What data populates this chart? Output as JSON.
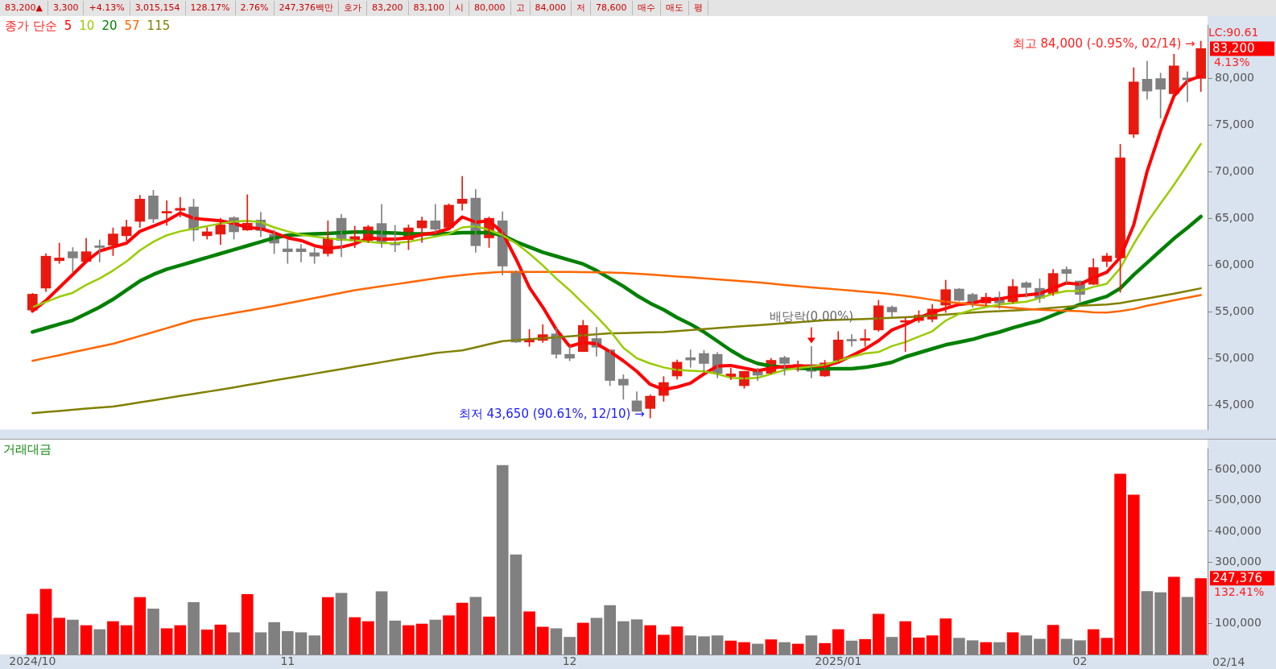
{
  "chart_data": [
    {
      "type": "other",
      "annotations": [
        "83,200▲",
        "3,300",
        "+4.13%",
        "3,015,154",
        "128.17%",
        "2.76%",
        "247,376백만",
        "호가",
        "83,200",
        "83,100",
        "시",
        "80,000",
        "고",
        "84,000",
        "저",
        "78,600",
        "매수",
        "매도",
        "평"
      ]
    },
    {
      "type": "candlestick",
      "legend": "top left",
      "legend_title": "종가 단순",
      "tick_labels": "y",
      "categories": [
        "2024/10",
        null,
        null,
        null,
        null,
        null,
        null,
        null,
        null,
        null,
        null,
        null,
        null,
        null,
        null,
        null,
        null,
        null,
        null,
        "11",
        null,
        null,
        null,
        null,
        null,
        null,
        null,
        null,
        null,
        null,
        null,
        null,
        null,
        null,
        null,
        null,
        null,
        null,
        null,
        null,
        "12",
        null,
        null,
        null,
        null,
        null,
        null,
        null,
        null,
        null,
        null,
        null,
        null,
        null,
        null,
        null,
        null,
        null,
        null,
        null,
        "2025/01",
        null,
        null,
        null,
        null,
        null,
        null,
        null,
        null,
        null,
        null,
        null,
        null,
        null,
        null,
        null,
        null,
        null,
        "02",
        null,
        null,
        null,
        null,
        null,
        null,
        null,
        null,
        null
      ],
      "ohlc": [
        [
          55200,
          57000,
          55000,
          56900
        ],
        [
          57550,
          61250,
          57190,
          60970
        ],
        [
          60490,
          62370,
          60190,
          60780
        ],
        [
          61450,
          61900,
          59290,
          60780
        ],
        [
          60410,
          62880,
          60270,
          61450
        ],
        [
          62090,
          62710,
          60350,
          61900
        ],
        [
          62150,
          64000,
          61030,
          63350
        ],
        [
          63160,
          64840,
          62650,
          64110
        ],
        [
          64700,
          67500,
          64050,
          67080
        ],
        [
          67420,
          68030,
          64560,
          64950
        ],
        [
          65590,
          66910,
          64280,
          65740
        ],
        [
          65880,
          67280,
          65170,
          66100
        ],
        [
          66240,
          67080,
          62600,
          63770
        ],
        [
          63160,
          64050,
          62790,
          63580
        ],
        [
          63330,
          65030,
          62230,
          64330
        ],
        [
          65090,
          65230,
          62790,
          63580
        ],
        [
          63770,
          67560,
          63720,
          64500
        ],
        [
          64840,
          65680,
          63070,
          63720
        ],
        [
          63300,
          63770,
          61250,
          62370
        ],
        [
          61760,
          62790,
          60190,
          61450
        ],
        [
          61760,
          62230,
          60350,
          61450
        ],
        [
          61340,
          61870,
          60190,
          60970
        ],
        [
          61250,
          64760,
          60970,
          62880
        ],
        [
          65030,
          65450,
          60920,
          62650
        ],
        [
          62600,
          64190,
          61870,
          63070
        ],
        [
          62650,
          64280,
          62430,
          64110
        ],
        [
          64470,
          66520,
          61900,
          62460
        ],
        [
          62370,
          64280,
          61450,
          62180
        ],
        [
          62740,
          64330,
          61670,
          64000
        ],
        [
          64000,
          65170,
          62430,
          64760
        ],
        [
          64760,
          66520,
          63490,
          63860
        ],
        [
          64050,
          66580,
          63770,
          66440
        ],
        [
          66630,
          69520,
          65880,
          67080
        ],
        [
          67190,
          68120,
          61390,
          62090
        ],
        [
          62930,
          65170,
          61900,
          65030
        ],
        [
          64760,
          65730,
          58950,
          59910
        ],
        [
          59290,
          59400,
          51700,
          51780
        ],
        [
          51780,
          53130,
          51310,
          52000
        ],
        [
          51950,
          53630,
          51730,
          52570
        ],
        [
          52650,
          53270,
          50040,
          50460
        ],
        [
          50460,
          51310,
          49760,
          50040
        ],
        [
          50750,
          54110,
          50750,
          53550
        ],
        [
          52150,
          53350,
          50270,
          51220
        ],
        [
          50940,
          50940,
          47100,
          47660
        ],
        [
          47800,
          48280,
          45640,
          47160
        ],
        [
          45480,
          46460,
          44360,
          44360
        ],
        [
          44660,
          46120,
          43650,
          45980
        ],
        [
          46060,
          48080,
          45420,
          47440
        ],
        [
          48140,
          49850,
          47800,
          49620
        ],
        [
          50100,
          50940,
          49060,
          49850
        ],
        [
          50550,
          50890,
          48640,
          49480
        ],
        [
          50460,
          50660,
          47940,
          48420
        ],
        [
          48080,
          48980,
          47750,
          48360
        ],
        [
          47100,
          48640,
          46820,
          48640
        ],
        [
          48640,
          48980,
          47660,
          48220
        ],
        [
          48420,
          50040,
          48360,
          49820
        ],
        [
          50100,
          50270,
          48220,
          49480
        ],
        [
          49200,
          49760,
          48640,
          49340
        ],
        [
          49340,
          51300,
          47940,
          48640
        ],
        [
          48140,
          49820,
          48080,
          49540
        ],
        [
          49760,
          52900,
          49760,
          52000
        ],
        [
          52000,
          52570,
          51310,
          51890
        ],
        [
          51950,
          53130,
          51310,
          52150
        ],
        [
          53070,
          56240,
          52920,
          55660
        ],
        [
          55510,
          55660,
          54360,
          55000
        ],
        [
          53900,
          54360,
          50760,
          54020
        ],
        [
          54080,
          55140,
          53870,
          54650
        ],
        [
          54220,
          55800,
          53930,
          55310
        ],
        [
          55720,
          58400,
          54940,
          57390
        ],
        [
          57450,
          57530,
          56150,
          56240
        ],
        [
          56870,
          57010,
          55510,
          56090
        ],
        [
          55950,
          57010,
          55660,
          56580
        ],
        [
          56580,
          57160,
          55370,
          55950
        ],
        [
          56090,
          58480,
          55950,
          57730
        ],
        [
          58110,
          58250,
          56580,
          57620
        ],
        [
          57530,
          58540,
          56000,
          56470
        ],
        [
          56960,
          59550,
          56750,
          59120
        ],
        [
          59550,
          59840,
          58110,
          59120
        ],
        [
          58310,
          58310,
          56090,
          56870
        ],
        [
          57960,
          60700,
          57910,
          59750
        ],
        [
          60410,
          61280,
          59840,
          60990
        ],
        [
          60790,
          72950,
          57100,
          71500
        ],
        [
          74040,
          81150,
          73670,
          79630
        ],
        [
          79920,
          81880,
          77790,
          78650
        ],
        [
          80000,
          80580,
          75770,
          78850
        ],
        [
          78360,
          82600,
          78360,
          81360
        ],
        [
          80060,
          80720,
          77500,
          79860
        ],
        [
          80000,
          84000,
          78600,
          83200
        ]
      ],
      "colors": [
        "#e8190f",
        "#e8190f",
        "#e8190f",
        "#808080",
        "#e8190f",
        "#808080",
        "#e8190f",
        "#e8190f",
        "#e8190f",
        "#808080",
        "#e8190f",
        "#e8190f",
        "#808080",
        "#e8190f",
        "#e8190f",
        "#808080",
        "#e8190f",
        "#808080",
        "#808080",
        "#808080",
        "#808080",
        "#808080",
        "#e8190f",
        "#808080",
        "#e8190f",
        "#e8190f",
        "#808080",
        "#808080",
        "#e8190f",
        "#e8190f",
        "#808080",
        "#e8190f",
        "#e8190f",
        "#808080",
        "#e8190f",
        "#808080",
        "#808080",
        "#e8190f",
        "#e8190f",
        "#808080",
        "#808080",
        "#e8190f",
        "#808080",
        "#808080",
        "#808080",
        "#808080",
        "#e8190f",
        "#e8190f",
        "#e8190f",
        "#808080",
        "#808080",
        "#808080",
        "#e8190f",
        "#e8190f",
        "#808080",
        "#e8190f",
        "#808080",
        "#e8190f",
        "#808080",
        "#e8190f",
        "#e8190f",
        "#808080",
        "#e8190f",
        "#e8190f",
        "#808080",
        "#e8190f",
        "#e8190f",
        "#e8190f",
        "#e8190f",
        "#808080",
        "#808080",
        "#e8190f",
        "#808080",
        "#e8190f",
        "#808080",
        "#808080",
        "#e8190f",
        "#808080",
        "#808080",
        "#e8190f",
        "#e8190f",
        "#e8190f",
        "#e8190f",
        "#808080",
        "#808080",
        "#e8190f",
        "#808080",
        "#e8190f"
      ],
      "series": [
        {
          "name": "5",
          "type": "line",
          "color": "#ff0000",
          "values": [
            55090,
            56210,
            57610,
            59010,
            60410,
            61530,
            61950,
            62370,
            63630,
            64190,
            64760,
            65590,
            65030,
            64890,
            64760,
            64470,
            64050,
            63910,
            63490,
            62930,
            62650,
            62090,
            61810,
            61950,
            62290,
            62930,
            62790,
            62790,
            62930,
            63270,
            63490,
            63910,
            65170,
            64610,
            64760,
            63490,
            60690,
            57610,
            55510,
            53130,
            51310,
            51730,
            51590,
            50750,
            49760,
            48640,
            47240,
            46680,
            46960,
            47380,
            48360,
            49200,
            49260,
            48980,
            48700,
            48980,
            49150,
            49200,
            49200,
            49200,
            49620,
            50320,
            51020,
            51910,
            53070,
            53640,
            54360,
            54940,
            55370,
            55800,
            55950,
            56290,
            56380,
            56670,
            56810,
            56960,
            57530,
            58110,
            57960,
            58680,
            59260,
            60840,
            64300,
            70060,
            74390,
            78130,
            79720,
            80290
          ]
        },
        {
          "name": "10",
          "type": "line",
          "color": "#99cc00",
          "values": [
            55510,
            56070,
            56630,
            57050,
            57890,
            58590,
            59430,
            60410,
            61590,
            62510,
            63210,
            63630,
            63910,
            64190,
            64470,
            64670,
            64760,
            64610,
            64050,
            63630,
            63270,
            63070,
            62880,
            62760,
            62650,
            62510,
            62370,
            62370,
            62510,
            62790,
            63070,
            63350,
            64050,
            64190,
            63770,
            63210,
            62370,
            61250,
            59990,
            58590,
            57330,
            55930,
            54530,
            52990,
            51160,
            50040,
            49480,
            49060,
            48780,
            48700,
            48640,
            48360,
            47940,
            47860,
            47940,
            48360,
            48780,
            48980,
            49150,
            49340,
            49760,
            50180,
            50550,
            50700,
            51340,
            51770,
            52350,
            52920,
            54070,
            54790,
            55230,
            55510,
            55800,
            55950,
            56090,
            56470,
            56960,
            57240,
            57240,
            57680,
            58020,
            59690,
            62280,
            64590,
            66610,
            68620,
            70780,
            73000
          ]
        },
        {
          "name": "20",
          "type": "line",
          "color": "#008000",
          "values": [
            52850,
            53270,
            53690,
            54110,
            54810,
            55510,
            56350,
            57330,
            58310,
            59010,
            59570,
            59990,
            60410,
            60830,
            61250,
            61670,
            62090,
            62510,
            62930,
            63210,
            63300,
            63350,
            63410,
            63490,
            63550,
            63550,
            63490,
            63440,
            63350,
            63350,
            63350,
            63410,
            63490,
            63490,
            63490,
            63210,
            62510,
            61950,
            61390,
            60970,
            60550,
            60130,
            59430,
            58590,
            57750,
            56770,
            55930,
            55230,
            54390,
            53690,
            52850,
            51870,
            50880,
            50040,
            49480,
            49200,
            49060,
            48980,
            48920,
            48920,
            48920,
            48920,
            49060,
            49300,
            49610,
            50190,
            50620,
            51050,
            51480,
            51770,
            52060,
            52490,
            52840,
            53300,
            53700,
            54070,
            54650,
            55230,
            55800,
            56240,
            56670,
            57530,
            58970,
            60270,
            61570,
            62860,
            64010,
            65220
          ]
        },
        {
          "name": "57",
          "type": "line",
          "color": "#ff6600",
          "values": [
            49760,
            50070,
            50370,
            50680,
            50980,
            51290,
            51590,
            52000,
            52420,
            52840,
            53260,
            53680,
            54110,
            54360,
            54620,
            54880,
            55130,
            55390,
            55650,
            55930,
            56210,
            56490,
            56770,
            57050,
            57330,
            57540,
            57750,
            57960,
            58170,
            58380,
            58590,
            58800,
            58950,
            59100,
            59200,
            59290,
            59290,
            59290,
            59290,
            59290,
            59280,
            59270,
            59250,
            59220,
            59180,
            59100,
            59010,
            58900,
            58800,
            58700,
            58590,
            58480,
            58380,
            58270,
            58170,
            58030,
            57890,
            57750,
            57630,
            57510,
            57400,
            57280,
            57160,
            57050,
            56900,
            56720,
            56520,
            56300,
            56100,
            55950,
            55800,
            55660,
            55560,
            55450,
            55330,
            55230,
            55180,
            55120,
            55080,
            54960,
            54940,
            55080,
            55310,
            55660,
            55950,
            56240,
            56520,
            56810
          ]
        },
        {
          "name": "115",
          "type": "line",
          "color": "#808000",
          "values": [
            44160,
            44280,
            44400,
            44520,
            44640,
            44750,
            44860,
            45090,
            45320,
            45540,
            45770,
            46000,
            46230,
            46450,
            46680,
            46920,
            47170,
            47410,
            47660,
            47900,
            48150,
            48390,
            48640,
            48880,
            49130,
            49370,
            49620,
            49860,
            50110,
            50350,
            50600,
            50740,
            50880,
            51210,
            51540,
            51870,
            51970,
            52080,
            52180,
            52290,
            52390,
            52500,
            52600,
            52710,
            52740,
            52780,
            52810,
            52850,
            52950,
            53060,
            53160,
            53270,
            53370,
            53480,
            53580,
            53690,
            53790,
            53900,
            54000,
            54110,
            54160,
            54210,
            54250,
            54300,
            54370,
            54440,
            54510,
            54610,
            54720,
            54830,
            54940,
            55010,
            55080,
            55150,
            55230,
            55330,
            55440,
            55550,
            55660,
            55730,
            55800,
            55950,
            56200,
            56450,
            56700,
            56950,
            57240,
            57530
          ]
        }
      ],
      "ylim": [
        42400,
        85700
      ],
      "yticks": [
        {
          "value": 45000,
          "label": "45,000"
        },
        {
          "value": 50000,
          "label": "50,000"
        },
        {
          "value": 55000,
          "label": "55,000"
        },
        {
          "value": 60000,
          "label": "60,000"
        },
        {
          "value": 65000,
          "label": "65,000"
        },
        {
          "value": 70000,
          "label": "70,000"
        },
        {
          "value": 75000,
          "label": "75,000"
        },
        {
          "value": 80000,
          "label": "80,000"
        }
      ],
      "annotations": [
        "최고 84,000 (-0.95%, 02/14) →",
        "최저 43,650 (90.61%, 12/10) →",
        {
          "text": "배당락(0.00%)",
          "y": 51300
        },
        "LC:90.61",
        "83,200",
        "4.13%"
      ]
    },
    {
      "type": "bar",
      "title": "거래대금",
      "categories": [
        "2024/10",
        null,
        null,
        null,
        null,
        null,
        null,
        null,
        null,
        null,
        null,
        null,
        null,
        null,
        null,
        null,
        null,
        null,
        null,
        "11",
        null,
        null,
        null,
        null,
        null,
        null,
        null,
        null,
        null,
        null,
        null,
        null,
        null,
        null,
        null,
        null,
        null,
        null,
        null,
        null,
        "12",
        null,
        null,
        null,
        null,
        null,
        null,
        null,
        null,
        null,
        null,
        null,
        null,
        null,
        null,
        null,
        null,
        null,
        null,
        null,
        "2025/01",
        null,
        null,
        null,
        null,
        null,
        null,
        null,
        null,
        null,
        null,
        null,
        null,
        null,
        null,
        null,
        null,
        null,
        "02",
        null,
        null,
        null,
        null,
        null,
        null,
        null,
        null,
        null
      ],
      "values": [
        132000,
        213000,
        119000,
        113000,
        95000,
        82000,
        108000,
        95000,
        186000,
        149000,
        85000,
        95000,
        170000,
        81000,
        97000,
        72000,
        196000,
        72000,
        105000,
        76000,
        72000,
        62000,
        186000,
        200000,
        121000,
        108000,
        205000,
        110000,
        95000,
        100000,
        113000,
        127000,
        168000,
        187000,
        123000,
        615000,
        325000,
        140000,
        90000,
        85000,
        57000,
        103000,
        119000,
        160000,
        108000,
        114000,
        95000,
        64000,
        91000,
        62000,
        59000,
        62000,
        45000,
        40000,
        35000,
        49000,
        40000,
        35000,
        62000,
        37000,
        82000,
        45000,
        50000,
        132000,
        57000,
        108000,
        55000,
        62000,
        117000,
        54000,
        46000,
        40000,
        40000,
        72000,
        62000,
        51000,
        96000,
        51000,
        46000,
        82000,
        54000,
        587000,
        519000,
        206000,
        202000,
        252000,
        187000,
        247376
      ],
      "colors": [
        "#ff0000",
        "#ff0000",
        "#ff0000",
        "#808080",
        "#ff0000",
        "#808080",
        "#ff0000",
        "#ff0000",
        "#ff0000",
        "#808080",
        "#ff0000",
        "#ff0000",
        "#808080",
        "#ff0000",
        "#ff0000",
        "#808080",
        "#ff0000",
        "#808080",
        "#808080",
        "#808080",
        "#808080",
        "#808080",
        "#ff0000",
        "#808080",
        "#ff0000",
        "#ff0000",
        "#808080",
        "#808080",
        "#ff0000",
        "#ff0000",
        "#808080",
        "#ff0000",
        "#ff0000",
        "#808080",
        "#ff0000",
        "#808080",
        "#808080",
        "#ff0000",
        "#ff0000",
        "#808080",
        "#808080",
        "#ff0000",
        "#808080",
        "#808080",
        "#808080",
        "#808080",
        "#ff0000",
        "#ff0000",
        "#ff0000",
        "#808080",
        "#808080",
        "#808080",
        "#ff0000",
        "#ff0000",
        "#808080",
        "#ff0000",
        "#808080",
        "#ff0000",
        "#808080",
        "#ff0000",
        "#ff0000",
        "#808080",
        "#ff0000",
        "#ff0000",
        "#808080",
        "#ff0000",
        "#ff0000",
        "#ff0000",
        "#ff0000",
        "#808080",
        "#808080",
        "#ff0000",
        "#808080",
        "#ff0000",
        "#808080",
        "#808080",
        "#ff0000",
        "#808080",
        "#808080",
        "#ff0000",
        "#ff0000",
        "#ff0000",
        "#ff0000",
        "#808080",
        "#808080",
        "#ff0000",
        "#808080",
        "#ff0000"
      ],
      "ylim": [
        0,
        668000
      ],
      "yticks": [
        {
          "value": 100000,
          "label": "100,000"
        },
        {
          "value": 300000,
          "label": "300,000"
        },
        {
          "value": 400000,
          "label": "400,000"
        },
        {
          "value": 500000,
          "label": "500,000"
        },
        {
          "value": 600000,
          "label": "600,000"
        }
      ],
      "annotations": [
        "247,376",
        "132.41%",
        "02/14"
      ]
    }
  ]
}
